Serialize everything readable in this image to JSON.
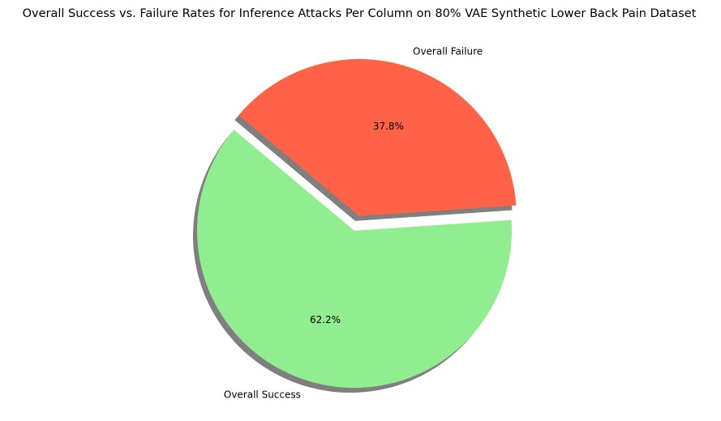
{
  "chart_data": {
    "type": "pie",
    "title": "Overall Success vs. Failure Rates for Inference Attacks Per Column on 80% VAE Synthetic Lower Back Pain Dataset",
    "slices": [
      {
        "label": "Overall Success",
        "percent": 62.2,
        "percent_label": "62.2%",
        "color": "#90ee90",
        "exploded": false
      },
      {
        "label": "Overall Failure",
        "percent": 37.8,
        "percent_label": "37.8%",
        "color": "#ff6347",
        "exploded": true
      }
    ],
    "shadow": true,
    "shadow_color": "#000000",
    "legend": false
  }
}
